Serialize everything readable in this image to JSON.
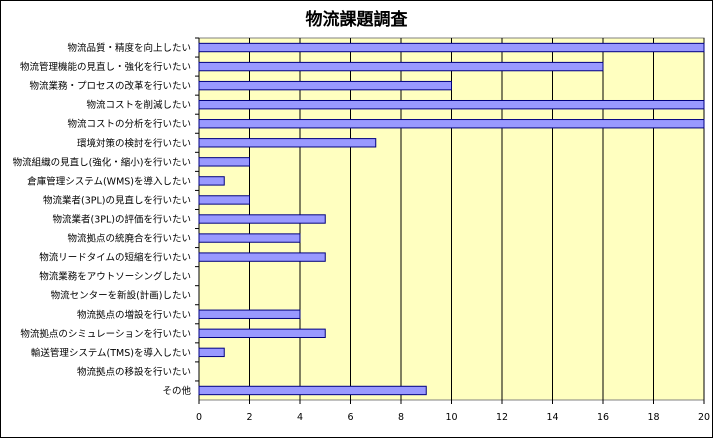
{
  "chart_data": {
    "type": "bar",
    "orientation": "horizontal",
    "title": "物流課題調査",
    "categories": [
      "物流品質・精度を向上したい",
      "物流管理機能の見直し・強化を行いたい",
      "物流業務・プロセスの改革を行いたい",
      "物流コストを削減したい",
      "物流コストの分析を行いたい",
      "環境対策の検討を行いたい",
      "物流組織の見直し(強化・縮小)を行いたい",
      "倉庫管理システム(WMS)を導入したい",
      "物流業者(3PL)の見直しを行いたい",
      "物流業者(3PL)の評価を行いたい",
      "物流拠点の統廃合を行いたい",
      "物流リードタイムの短縮を行いたい",
      "物流業務をアウトソーシングしたい",
      "物流センターを新設(計画)したい",
      "物流拠点の増設を行いたい",
      "物流拠点のシミュレーションを行いたい",
      "輸送管理システム(TMS)を導入したい",
      "物流拠点の移設を行いたい",
      "その他"
    ],
    "values": [
      20,
      16,
      10,
      20,
      20,
      7,
      2,
      1,
      2,
      5,
      4,
      5,
      0,
      0,
      4,
      5,
      1,
      0,
      9
    ],
    "xlim": [
      0,
      20
    ],
    "xticks": [
      "0",
      "2",
      "4",
      "6",
      "8",
      "10",
      "12",
      "14",
      "16",
      "18",
      "20"
    ],
    "grid": true,
    "legend": "none",
    "colors": {
      "plot_background": "#ffffc0",
      "bar_fill": "#9999ff",
      "bar_stroke": "#000080",
      "grid": "#000000"
    }
  }
}
